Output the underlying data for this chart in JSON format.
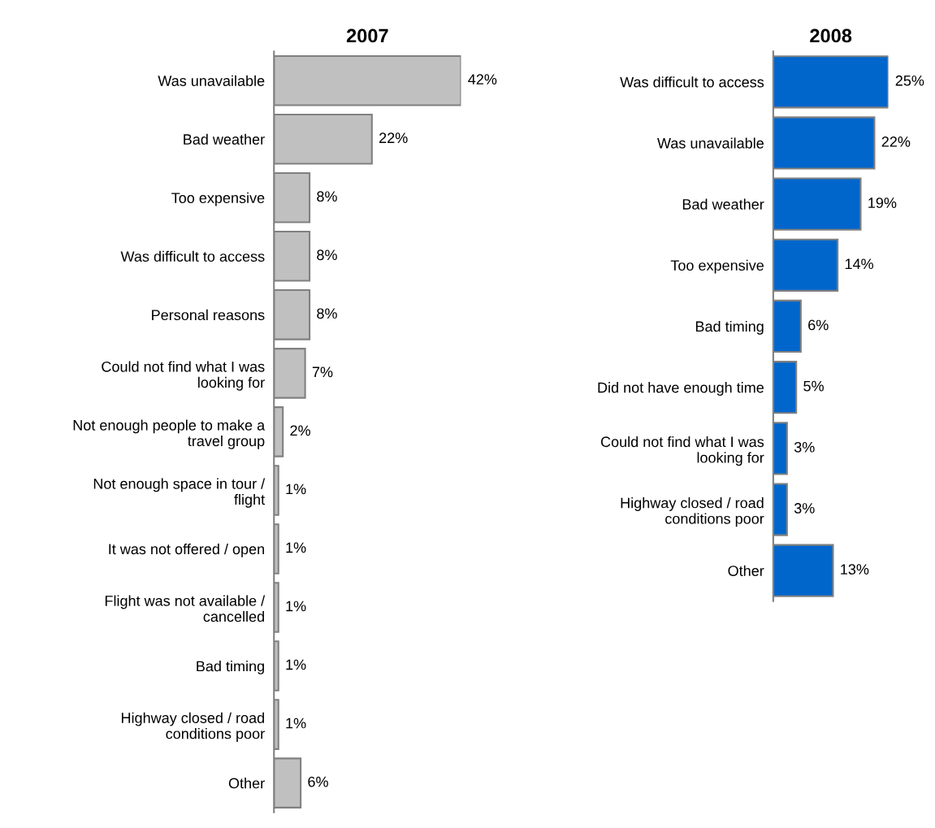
{
  "chart_data": [
    {
      "type": "bar",
      "orientation": "horizontal",
      "title": "2007",
      "categories": [
        "Was unavailable",
        "Bad weather",
        "Too expensive",
        "Was difficult to access",
        "Personal reasons",
        "Could not find what I was\nlooking for",
        "Not enough people to make a\ntravel group",
        "Not enough space in tour /\nflight",
        "It was not offered / open",
        "Flight was not available /\ncancelled",
        "Bad timing",
        "Highway closed / road\nconditions poor",
        "Other"
      ],
      "values": [
        42,
        22,
        8,
        8,
        8,
        7,
        2,
        1,
        1,
        1,
        1,
        1,
        6
      ],
      "color": "#c0c0c0",
      "value_labels": [
        "42%",
        "22%",
        "8%",
        "8%",
        "8%",
        "7%",
        "2%",
        "1%",
        "1%",
        "1%",
        "1%",
        "1%",
        "6%"
      ],
      "tick_labels": "y",
      "grid": false,
      "legend": false
    },
    {
      "type": "bar",
      "orientation": "horizontal",
      "title": "2008",
      "categories": [
        "Was difficult to access",
        "Was unavailable",
        "Bad weather",
        "Too expensive",
        "Bad timing",
        "Did not have enough time",
        "Could not find what I was\nlooking for",
        "Highway closed / road\nconditions poor",
        "Other"
      ],
      "values": [
        25,
        22,
        19,
        14,
        6,
        5,
        3,
        3,
        13
      ],
      "color": "#0066cc",
      "value_labels": [
        "25%",
        "22%",
        "19%",
        "14%",
        "6%",
        "5%",
        "3%",
        "3%",
        "13%"
      ],
      "tick_labels": "y",
      "grid": false,
      "legend": false
    }
  ]
}
